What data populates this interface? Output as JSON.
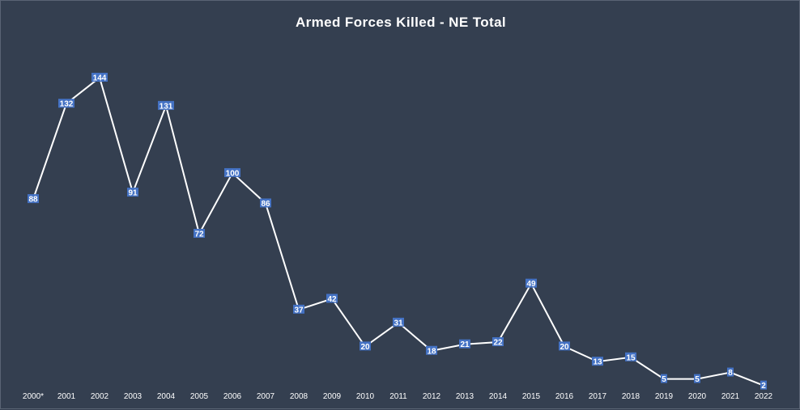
{
  "chart_data": {
    "type": "line",
    "title": "Armed Forces Killed - NE Total",
    "xlabel": "",
    "ylabel": "",
    "categories": [
      "2000*",
      "2001",
      "2002",
      "2003",
      "2004",
      "2005",
      "2006",
      "2007",
      "2008",
      "2009",
      "2010",
      "2011",
      "2012",
      "2013",
      "2014",
      "2015",
      "2016",
      "2017",
      "2018",
      "2019",
      "2020",
      "2021",
      "2022"
    ],
    "series": [
      {
        "values": [
          88,
          132,
          144,
          91,
          131,
          72,
          100,
          86,
          37,
          42,
          20,
          31,
          18,
          21,
          22,
          49,
          20,
          13,
          15,
          5,
          5,
          8,
          2
        ]
      }
    ],
    "ylim": [
      0,
      144
    ],
    "grid": false,
    "legend": "none",
    "colors": {
      "background": "#343f50",
      "line": "#ffffff",
      "label_bg": "#4472c4",
      "text": "#ffffff"
    }
  }
}
